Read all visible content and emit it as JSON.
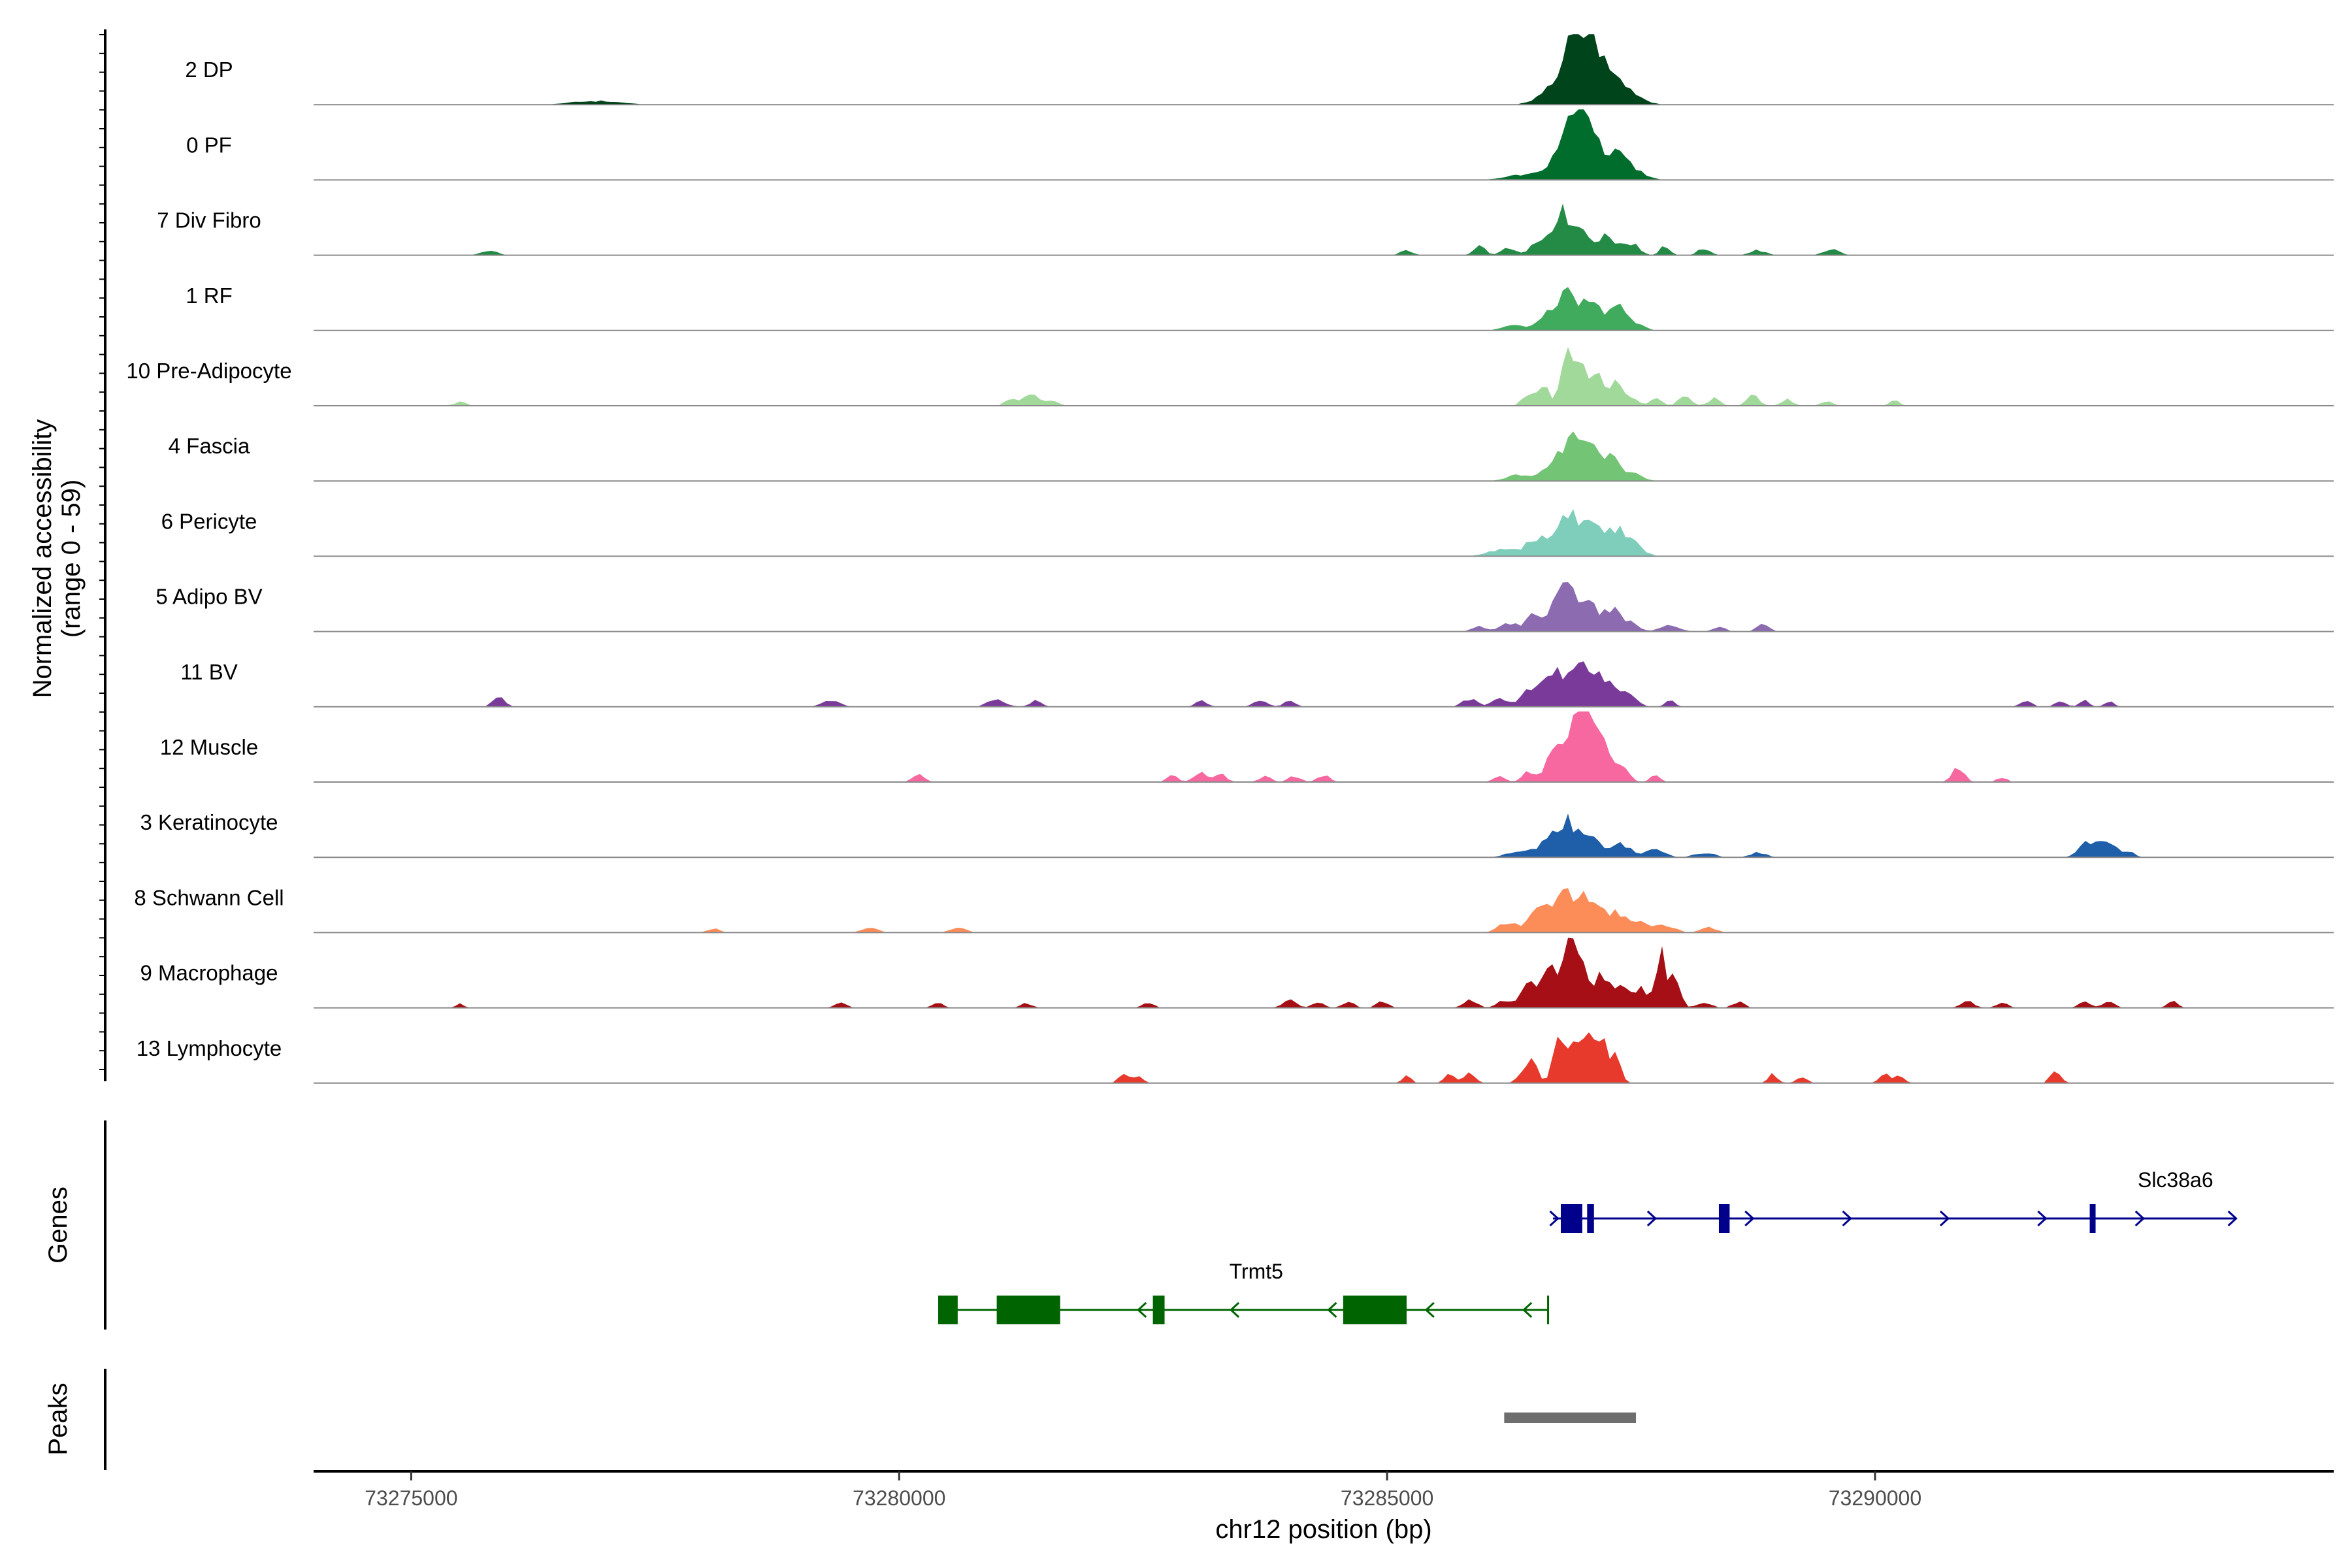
{
  "chart_data": {
    "type": "area",
    "ylabel": "Normalized accessibility",
    "ylabel_range": "(range 0 - 59)",
    "ylim": [
      0,
      59
    ],
    "xlabel": "chr12 position (bp)",
    "xlim": [
      73274000,
      73294700
    ],
    "x_ticks": [
      73275000,
      73280000,
      73285000,
      73290000
    ],
    "x_tick_labels": [
      "73275000",
      "73280000",
      "73285000",
      "73290000"
    ],
    "tracks": [
      {
        "name": "2 DP",
        "color": "#00441b",
        "peaks": [
          [
            73276900,
            3,
            250
          ],
          [
            73286600,
            3,
            150
          ],
          [
            73286800,
            20,
            140
          ],
          [
            73286950,
            44,
            100
          ],
          [
            73287100,
            40,
            90
          ],
          [
            73287300,
            26,
            110
          ],
          [
            73287500,
            8,
            130
          ]
        ]
      },
      {
        "name": "0 PF",
        "color": "#006d2c",
        "peaks": [
          [
            73286400,
            4,
            180
          ],
          [
            73286800,
            24,
            130
          ],
          [
            73286950,
            39,
            100
          ],
          [
            73287100,
            33,
            90
          ],
          [
            73287350,
            24,
            100
          ],
          [
            73287550,
            6,
            120
          ]
        ]
      },
      {
        "name": "7 Div Fibro",
        "color": "#238b45",
        "peaks": [
          [
            73275800,
            4,
            80
          ],
          [
            73285200,
            4,
            60
          ],
          [
            73285950,
            7,
            60
          ],
          [
            73286250,
            6,
            70
          ],
          [
            73286550,
            12,
            70
          ],
          [
            73286780,
            36,
            90
          ],
          [
            73287000,
            22,
            80
          ],
          [
            73287250,
            17,
            90
          ],
          [
            73287500,
            10,
            80
          ],
          [
            73287850,
            8,
            50
          ],
          [
            73288250,
            6,
            60
          ],
          [
            73288800,
            4,
            80
          ],
          [
            73289550,
            5,
            80
          ]
        ]
      },
      {
        "name": "1 RF",
        "color": "#41ab5d",
        "peaks": [
          [
            73286300,
            4,
            120
          ],
          [
            73286650,
            10,
            100
          ],
          [
            73286850,
            30,
            110
          ],
          [
            73287100,
            24,
            90
          ],
          [
            73287350,
            23,
            80
          ],
          [
            73287550,
            6,
            80
          ]
        ]
      },
      {
        "name": "10 Pre-Adipocyte",
        "color": "#a1d99b",
        "peaks": [
          [
            73275500,
            3,
            60
          ],
          [
            73281150,
            7,
            60
          ],
          [
            73281350,
            11,
            60
          ],
          [
            73281550,
            5,
            70
          ],
          [
            73286450,
            10,
            60
          ],
          [
            73286600,
            16,
            60
          ],
          [
            73286850,
            50,
            60
          ],
          [
            73287000,
            29,
            60
          ],
          [
            73287150,
            24,
            70
          ],
          [
            73287350,
            18,
            60
          ],
          [
            73287500,
            7,
            60
          ],
          [
            73287750,
            6,
            60
          ],
          [
            73288050,
            8,
            60
          ],
          [
            73288350,
            6,
            60
          ],
          [
            73288750,
            9,
            60
          ],
          [
            73289100,
            5,
            60
          ],
          [
            73289500,
            4,
            60
          ],
          [
            73290200,
            4,
            50
          ]
        ]
      },
      {
        "name": "4 Fascia",
        "color": "#74c476",
        "peaks": [
          [
            73286350,
            5,
            120
          ],
          [
            73286700,
            14,
            100
          ],
          [
            73286900,
            35,
            90
          ],
          [
            73287100,
            24,
            80
          ],
          [
            73287300,
            19,
            90
          ],
          [
            73287550,
            6,
            80
          ]
        ]
      },
      {
        "name": "6 Pericyte",
        "color": "#7fcdbb",
        "peaks": [
          [
            73286200,
            6,
            150
          ],
          [
            73286550,
            15,
            110
          ],
          [
            73286850,
            37,
            100
          ],
          [
            73287100,
            26,
            100
          ],
          [
            73287350,
            21,
            100
          ],
          [
            73287550,
            8,
            90
          ]
        ]
      },
      {
        "name": "5 Adipo BV",
        "color": "#8c6bb1",
        "peaks": [
          [
            73285950,
            4,
            80
          ],
          [
            73286250,
            7,
            80
          ],
          [
            73286500,
            13,
            80
          ],
          [
            73286800,
            38,
            110
          ],
          [
            73287050,
            26,
            90
          ],
          [
            73287300,
            19,
            80
          ],
          [
            73287500,
            7,
            80
          ],
          [
            73287900,
            6,
            90
          ],
          [
            73288400,
            4,
            60
          ],
          [
            73288850,
            6,
            60
          ]
        ]
      },
      {
        "name": "11 BV",
        "color": "#7a3a9a",
        "peaks": [
          [
            73275900,
            8,
            60
          ],
          [
            73279300,
            5,
            90
          ],
          [
            73281000,
            6,
            90
          ],
          [
            73281400,
            5,
            60
          ],
          [
            73283100,
            5,
            60
          ],
          [
            73283700,
            5,
            70
          ],
          [
            73284000,
            5,
            60
          ],
          [
            73285850,
            6,
            80
          ],
          [
            73286150,
            7,
            70
          ],
          [
            73286450,
            14,
            90
          ],
          [
            73286700,
            30,
            90
          ],
          [
            73286950,
            36,
            90
          ],
          [
            73287200,
            24,
            100
          ],
          [
            73287450,
            12,
            90
          ],
          [
            73287900,
            5,
            50
          ],
          [
            73291550,
            5,
            60
          ],
          [
            73291900,
            4,
            60
          ],
          [
            73292150,
            5,
            50
          ],
          [
            73292400,
            4,
            50
          ]
        ]
      },
      {
        "name": "12 Muscle",
        "color": "#f768a1",
        "peaks": [
          [
            73280200,
            6,
            60
          ],
          [
            73282800,
            5,
            60
          ],
          [
            73283100,
            8,
            70
          ],
          [
            73283300,
            6,
            60
          ],
          [
            73283750,
            5,
            60
          ],
          [
            73284050,
            5,
            60
          ],
          [
            73284350,
            6,
            60
          ],
          [
            73286150,
            5,
            60
          ],
          [
            73286450,
            9,
            60
          ],
          [
            73286700,
            30,
            70
          ],
          [
            73286900,
            49,
            70
          ],
          [
            73287050,
            55,
            60
          ],
          [
            73287200,
            38,
            70
          ],
          [
            73287400,
            15,
            70
          ],
          [
            73287750,
            6,
            50
          ],
          [
            73290850,
            13,
            60
          ],
          [
            73291300,
            4,
            50
          ]
        ]
      },
      {
        "name": "3 Keratinocyte",
        "color": "#1f5ea8",
        "peaks": [
          [
            73286350,
            5,
            120
          ],
          [
            73286650,
            13,
            100
          ],
          [
            73286850,
            28,
            100
          ],
          [
            73287100,
            16,
            100
          ],
          [
            73287400,
            11,
            100
          ],
          [
            73287750,
            6,
            100
          ],
          [
            73288250,
            4,
            100
          ],
          [
            73288800,
            4,
            80
          ],
          [
            73292200,
            13,
            100
          ],
          [
            73292400,
            10,
            80
          ],
          [
            73292600,
            4,
            70
          ]
        ]
      },
      {
        "name": "8 Schwann Cell",
        "color": "#fc8d59",
        "peaks": [
          [
            73278100,
            3,
            70
          ],
          [
            73279700,
            4,
            80
          ],
          [
            73280600,
            4,
            80
          ],
          [
            73286250,
            9,
            100
          ],
          [
            73286550,
            17,
            90
          ],
          [
            73286800,
            36,
            100
          ],
          [
            73287050,
            30,
            90
          ],
          [
            73287300,
            16,
            100
          ],
          [
            73287550,
            10,
            100
          ],
          [
            73287850,
            6,
            100
          ],
          [
            73288300,
            4,
            80
          ]
        ]
      },
      {
        "name": "9 Macrophage",
        "color": "#a50f15",
        "peaks": [
          [
            73275500,
            4,
            40
          ],
          [
            73279400,
            4,
            60
          ],
          [
            73280400,
            4,
            60
          ],
          [
            73281300,
            4,
            60
          ],
          [
            73282550,
            4,
            60
          ],
          [
            73284000,
            6,
            70
          ],
          [
            73284300,
            5,
            60
          ],
          [
            73284600,
            5,
            60
          ],
          [
            73284950,
            5,
            60
          ],
          [
            73285850,
            6,
            70
          ],
          [
            73286200,
            6,
            70
          ],
          [
            73286450,
            18,
            80
          ],
          [
            73286650,
            32,
            70
          ],
          [
            73286850,
            47,
            70
          ],
          [
            73287000,
            39,
            70
          ],
          [
            73287200,
            25,
            70
          ],
          [
            73287400,
            22,
            70
          ],
          [
            73287600,
            17,
            60
          ],
          [
            73287800,
            45,
            50
          ],
          [
            73287950,
            30,
            50
          ],
          [
            73288250,
            5,
            70
          ],
          [
            73288600,
            5,
            60
          ],
          [
            73290950,
            5,
            70
          ],
          [
            73291300,
            4,
            60
          ],
          [
            73292150,
            5,
            60
          ],
          [
            73292400,
            5,
            60
          ],
          [
            73293050,
            5,
            60
          ]
        ]
      },
      {
        "name": "13 Lymphocyte",
        "color": "#e8392d",
        "peaks": [
          [
            73282300,
            7,
            50
          ],
          [
            73282450,
            6,
            50
          ],
          [
            73285200,
            7,
            40
          ],
          [
            73285650,
            7,
            60
          ],
          [
            73285850,
            10,
            50
          ],
          [
            73286400,
            9,
            60
          ],
          [
            73286500,
            18,
            50
          ],
          [
            73286750,
            47,
            50
          ],
          [
            73286900,
            40,
            50
          ],
          [
            73287050,
            46,
            50
          ],
          [
            73287200,
            37,
            60
          ],
          [
            73287350,
            20,
            50
          ],
          [
            73288950,
            7,
            50
          ],
          [
            73289250,
            6,
            50
          ],
          [
            73290100,
            7,
            60
          ],
          [
            73290250,
            6,
            50
          ],
          [
            73291850,
            11,
            50
          ]
        ]
      }
    ],
    "genes": {
      "title": "Genes",
      "items": [
        {
          "name": "Slc38a6",
          "strand": "+",
          "color": "#00008b",
          "start": 73286700,
          "end": 73293700,
          "exons": [
            [
              73286780,
              73287000
            ],
            [
              73287050,
              73287120
            ],
            [
              73288400,
              73288510
            ],
            [
              73292200,
              73292260
            ]
          ],
          "arrows": [
            73286750,
            73287750,
            73288750,
            73289750,
            73290750,
            73291750,
            73292750,
            73293700
          ]
        },
        {
          "name": "Trmt5",
          "strand": "-",
          "color": "#006400",
          "start": 73280400,
          "end": 73286650,
          "exons": [
            [
              73280400,
              73280600
            ],
            [
              73281000,
              73281650
            ],
            [
              73282600,
              73282720
            ],
            [
              73284550,
              73285200
            ]
          ],
          "arrows": [
            73282450,
            73283400,
            73284400,
            73285400,
            73286400
          ]
        }
      ]
    },
    "peak_track": {
      "title": "Peaks",
      "color": "#6e6e6e",
      "regions": [
        [
          73286200,
          73287550
        ]
      ]
    }
  }
}
